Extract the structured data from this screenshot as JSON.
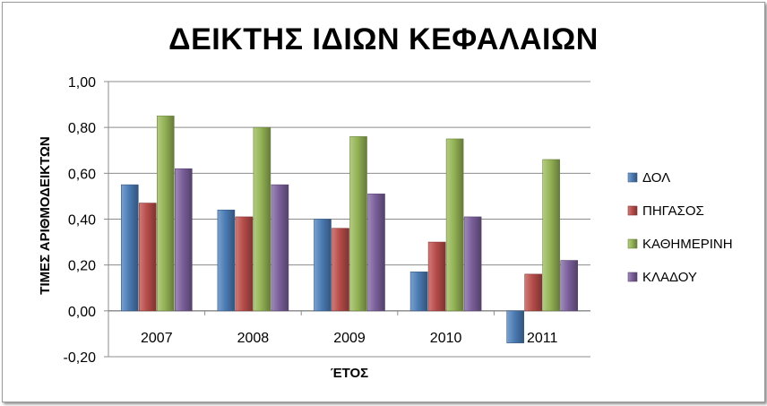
{
  "chart_data": {
    "type": "bar",
    "title": "ΔΕΙΚΤΗΣ ΙΔΙΩΝ ΚΕΦΑΛΑΙΩΝ",
    "xlabel": "ΈΤΟΣ",
    "ylabel": "ΤΙΜΕΣ ΑΡΙΘΜΟΔΕΙΚΤΩΝ",
    "categories": [
      "2007",
      "2008",
      "2009",
      "2010",
      "2011"
    ],
    "ylim": [
      -0.2,
      1.0
    ],
    "yticks": [
      "1,00",
      "0,80",
      "0,60",
      "0,40",
      "0,20",
      "0,00",
      "-0,20"
    ],
    "grid": true,
    "legend_position": "right",
    "series": [
      {
        "name": "ΔΟΛ",
        "color": "#4f81bd",
        "values": [
          0.55,
          0.44,
          0.4,
          0.17,
          -0.14
        ]
      },
      {
        "name": "ΠΗΓΑΣΟΣ",
        "color": "#c0504d",
        "values": [
          0.47,
          0.41,
          0.36,
          0.3,
          0.16
        ]
      },
      {
        "name": "ΚΑΘΗΜΕΡΙΝΗ",
        "color": "#9bbb59",
        "values": [
          0.85,
          0.8,
          0.76,
          0.75,
          0.66
        ]
      },
      {
        "name": "ΚΛΑΔΟΥ",
        "color": "#8064a2",
        "values": [
          0.62,
          0.55,
          0.51,
          0.41,
          0.22
        ]
      }
    ]
  }
}
